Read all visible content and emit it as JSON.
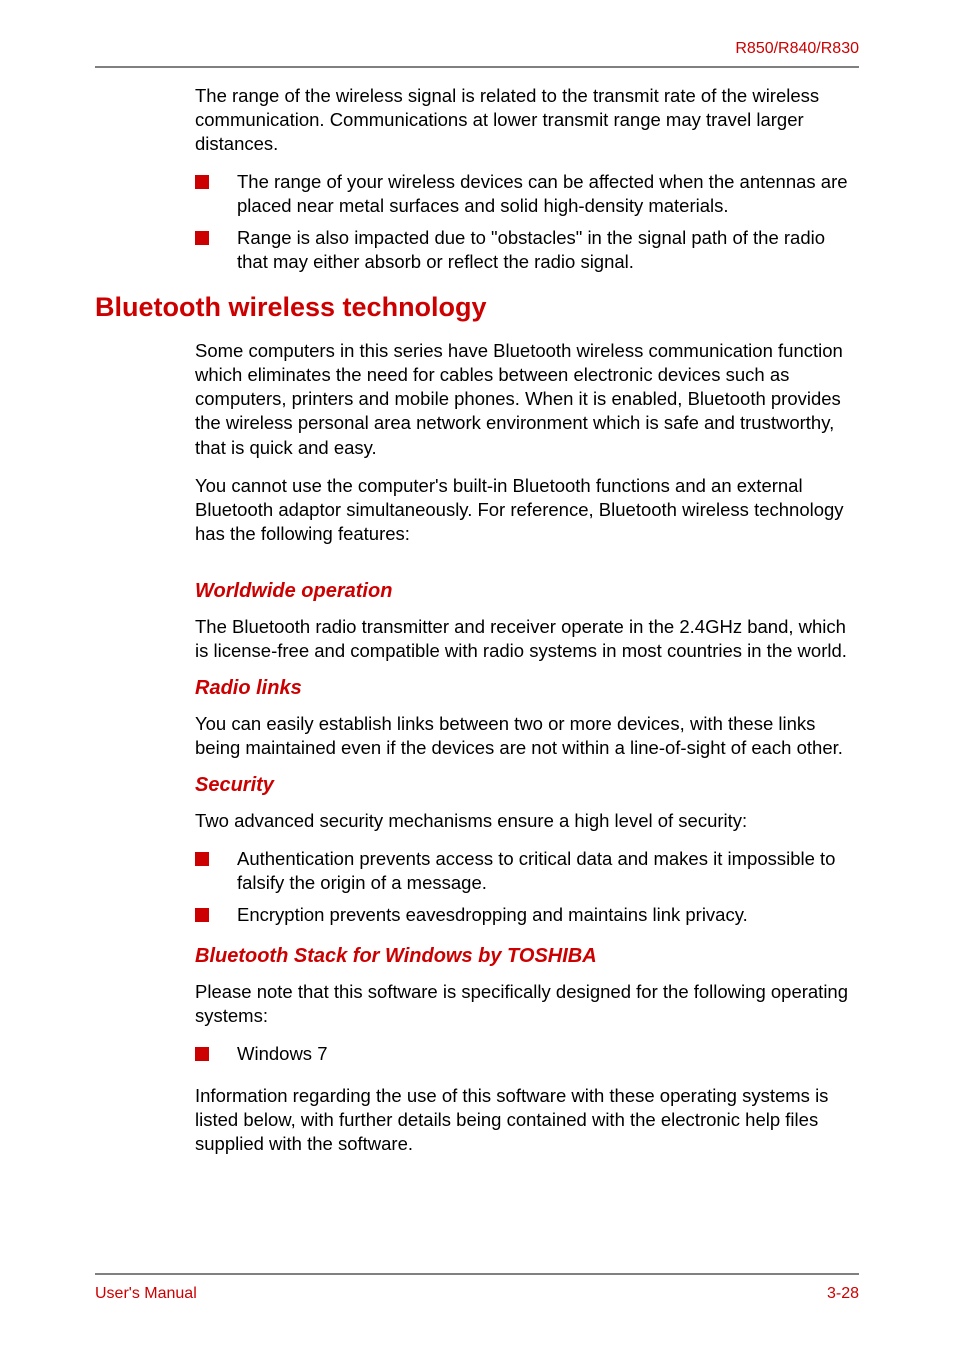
{
  "colors": {
    "accent": "#cc0000",
    "rule": "#808080",
    "text": "#000000",
    "background": "#ffffff"
  },
  "typography": {
    "body_fontsize_pt": 14,
    "h1_fontsize_pt": 20,
    "h2_fontsize_pt": 15,
    "body_font": "Arial",
    "heading_font": "Arial Black",
    "h2_style": "bold italic"
  },
  "header": {
    "product_code": "R850/R840/R830"
  },
  "intro": {
    "paragraph": "The range of the wireless signal is related to the transmit rate of the wireless communication. Communications at lower transmit range may travel larger distances.",
    "bullets": [
      "The range of your wireless devices can be affected when the antennas are placed near metal surfaces and solid high-density materials.",
      "Range is also impacted due to \"obstacles\" in the signal path of the radio that may either absorb or reflect the radio signal."
    ]
  },
  "bluetooth": {
    "title": "Bluetooth wireless technology",
    "p1": "Some computers in this series have Bluetooth wireless communication function which eliminates the need for cables between electronic devices such as computers, printers and mobile phones. When it is enabled, Bluetooth provides the wireless personal area network environment which is safe and trustworthy, that is quick and easy.",
    "p2": "You cannot use the computer's built-in Bluetooth functions and an external Bluetooth adaptor simultaneously. For reference, Bluetooth wireless technology has the following features:",
    "sections": {
      "worldwide": {
        "title": "Worldwide operation",
        "body": "The Bluetooth radio transmitter and receiver operate in the 2.4GHz band, which is license-free and compatible with radio systems in most countries in the world."
      },
      "radio_links": {
        "title": "Radio links",
        "body": "You can easily establish links between two or more devices, with these links being maintained even if the devices are not within a line-of-sight of each other."
      },
      "security": {
        "title": "Security",
        "intro": "Two advanced security mechanisms ensure a high level of security:",
        "bullets": [
          "Authentication prevents access to critical data and makes it impossible to falsify the origin of a message.",
          "Encryption prevents eavesdropping and maintains link privacy."
        ]
      },
      "stack": {
        "title": "Bluetooth Stack for Windows by TOSHIBA",
        "intro": "Please note that this software is specifically designed for the following operating systems:",
        "bullets": [
          "Windows 7"
        ],
        "outro": "Information regarding the use of this software with these operating systems is listed below, with further details being contained with the electronic help files supplied with the software."
      }
    }
  },
  "footer": {
    "left": "User's Manual",
    "right": "3-28"
  }
}
